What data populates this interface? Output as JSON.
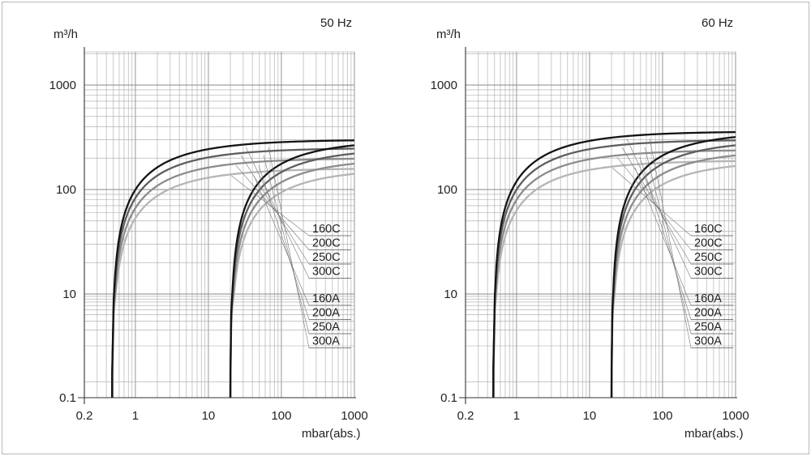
{
  "chart_data": [
    {
      "type": "line",
      "title": "50 Hz",
      "ylabel": "m³/h",
      "xlabel": "mbar(abs.)",
      "xscale": "log",
      "yscale": "log",
      "xlim": [
        0.2,
        1000
      ],
      "ylim": [
        0.1,
        2000
      ],
      "x_ticks": [
        0.2,
        1,
        10,
        100,
        1000
      ],
      "x_tick_labels": [
        "0.2",
        "1",
        "10",
        "100",
        "1000"
      ],
      "y_ticks": [
        0.1,
        10,
        100,
        1000
      ],
      "y_tick_labels": [
        "0.1",
        "10",
        "100",
        "1000"
      ],
      "grid": true,
      "legend_position": "right",
      "series": [
        {
          "name": "160C",
          "color": "#b5b5b5",
          "x_min": 0.48,
          "plateau": 160
        },
        {
          "name": "200C",
          "color": "#8c8c8c",
          "x_min": 0.48,
          "plateau": 200
        },
        {
          "name": "250C",
          "color": "#5e5e5e",
          "x_min": 0.48,
          "plateau": 250
        },
        {
          "name": "300C",
          "color": "#141414",
          "x_min": 0.48,
          "plateau": 300
        },
        {
          "name": "160A",
          "color": "#b5b5b5",
          "x_min": 20,
          "plateau": 160
        },
        {
          "name": "200A",
          "color": "#8c8c8c",
          "x_min": 20,
          "plateau": 200
        },
        {
          "name": "250A",
          "color": "#5e5e5e",
          "x_min": 20,
          "plateau": 250
        },
        {
          "name": "300A",
          "color": "#141414",
          "x_min": 20,
          "plateau": 300
        }
      ]
    },
    {
      "type": "line",
      "title": "60 Hz",
      "ylabel": "m³/h",
      "xlabel": "mbar(abs.)",
      "xscale": "log",
      "yscale": "log",
      "xlim": [
        0.2,
        1000
      ],
      "ylim": [
        0.1,
        2000
      ],
      "x_ticks": [
        0.2,
        1,
        10,
        100,
        1000
      ],
      "x_tick_labels": [
        "0.2",
        "1",
        "10",
        "100",
        "1000"
      ],
      "y_ticks": [
        0.1,
        10,
        100,
        1000
      ],
      "y_tick_labels": [
        "0.1",
        "10",
        "100",
        "1000"
      ],
      "grid": true,
      "legend_position": "right",
      "series": [
        {
          "name": "160C",
          "color": "#b5b5b5",
          "x_min": 0.48,
          "plateau": 190
        },
        {
          "name": "200C",
          "color": "#8c8c8c",
          "x_min": 0.48,
          "plateau": 240
        },
        {
          "name": "250C",
          "color": "#5e5e5e",
          "x_min": 0.48,
          "plateau": 300
        },
        {
          "name": "300C",
          "color": "#141414",
          "x_min": 0.48,
          "plateau": 360
        },
        {
          "name": "160A",
          "color": "#b5b5b5",
          "x_min": 20,
          "plateau": 190
        },
        {
          "name": "200A",
          "color": "#8c8c8c",
          "x_min": 20,
          "plateau": 240
        },
        {
          "name": "250A",
          "color": "#5e5e5e",
          "x_min": 20,
          "plateau": 300
        },
        {
          "name": "300A",
          "color": "#141414",
          "x_min": 20,
          "plateau": 360
        }
      ]
    }
  ]
}
